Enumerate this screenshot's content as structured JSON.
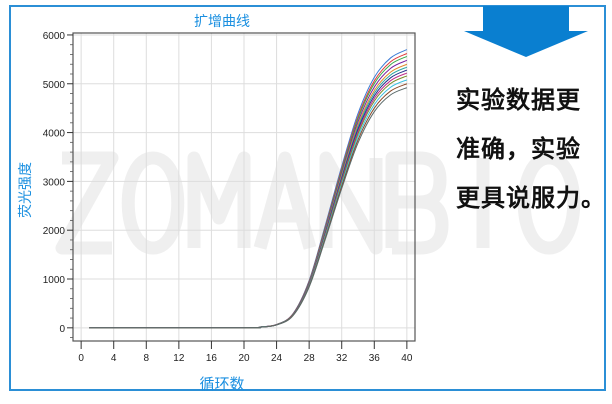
{
  "watermark": "ZOMANBIO",
  "side_text": [
    "实验数据更",
    "准确，实验",
    "更具说服力。"
  ],
  "colors": {
    "frame": "#2b8fd6",
    "arrow": "#0a7fd0",
    "label": "#1a8fe0"
  },
  "chart_data": {
    "type": "line",
    "title": "扩增曲线",
    "xlabel": "循环数",
    "ylabel": "荧光强度",
    "xlim": [
      -1,
      41
    ],
    "ylim": [
      -270,
      6040
    ],
    "xticks": [
      0,
      4,
      8,
      12,
      16,
      20,
      24,
      28,
      32,
      36,
      40
    ],
    "yticks": [
      0,
      1000,
      2000,
      3000,
      4000,
      5000,
      6000
    ],
    "grid": true,
    "legend": "none",
    "x": [
      1,
      20,
      22,
      24,
      26,
      28,
      30,
      32,
      34,
      36,
      38,
      40
    ],
    "series": [
      {
        "color": "#3a7bd5",
        "values": [
          0,
          0,
          17,
          68,
          285,
          969,
          2109,
          3306,
          4389,
          5130,
          5529,
          5700
        ]
      },
      {
        "color": "#e03a3a",
        "values": [
          0,
          0,
          17,
          67,
          281,
          955,
          2079,
          3260,
          4327,
          5058,
          5451,
          5620
        ]
      },
      {
        "color": "#3aaa4a",
        "values": [
          0,
          0,
          17,
          67,
          278,
          945,
          2057,
          3225,
          4281,
          5004,
          5393,
          5560
        ]
      },
      {
        "color": "#7a1fa0",
        "values": [
          0,
          0,
          16,
          66,
          274,
          932,
          2028,
          3178,
          4220,
          4932,
          5316,
          5480
        ]
      },
      {
        "color": "#e08a2a",
        "values": [
          0,
          0,
          16,
          65,
          270,
          918,
          1998,
          3132,
          4158,
          4860,
          5238,
          5400
        ]
      },
      {
        "color": "#2aa5a0",
        "values": [
          0,
          0,
          16,
          64,
          267,
          908,
          1976,
          3097,
          4112,
          4806,
          5180,
          5340
        ]
      },
      {
        "color": "#1f2f8a",
        "values": [
          0,
          0,
          16,
          63,
          264,
          898,
          1954,
          3062,
          4066,
          4752,
          5122,
          5280
        ]
      },
      {
        "color": "#c02a8a",
        "values": [
          0,
          0,
          16,
          63,
          261,
          887,
          1931,
          3028,
          4019,
          4698,
          5063,
          5220
        ]
      },
      {
        "color": "#7a8a2a",
        "values": [
          0,
          0,
          15,
          62,
          258,
          877,
          1909,
          2993,
          3973,
          4644,
          5005,
          5160
        ]
      },
      {
        "color": "#3ac0e0",
        "values": [
          0,
          0,
          15,
          61,
          254,
          864,
          1880,
          2946,
          3912,
          4572,
          4928,
          5080
        ]
      },
      {
        "color": "#8a4a2a",
        "values": [
          0,
          0,
          15,
          60,
          250,
          850,
          1850,
          2900,
          3850,
          4500,
          4850,
          5000
        ]
      },
      {
        "color": "#5a6a6a",
        "values": [
          0,
          0,
          15,
          59,
          246,
          836,
          1820,
          2854,
          3788,
          4428,
          4772,
          4920
        ]
      }
    ]
  }
}
